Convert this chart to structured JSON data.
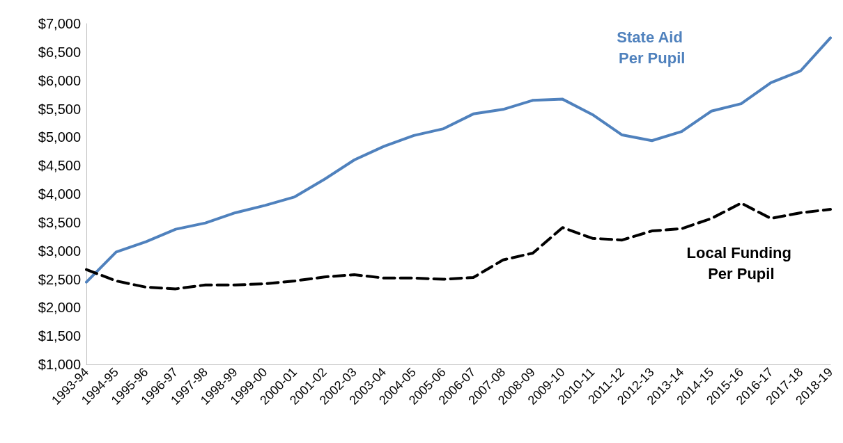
{
  "chart_data": {
    "type": "line",
    "categories": [
      "1993-94",
      "1994-95",
      "1995-96",
      "1996-97",
      "1997-98",
      "1998-99",
      "1999-00",
      "2000-01",
      "2001-02",
      "2002-03",
      "2003-04",
      "2004-05",
      "2005-06",
      "2006-07",
      "2007-08",
      "2008-09",
      "2009-10",
      "2010-11",
      "2011-12",
      "2012-13",
      "2013-14",
      "2014-15",
      "2015-16",
      "2016-17",
      "2017-18",
      "2018-19"
    ],
    "series": [
      {
        "name": "State Aid Per Pupil",
        "color": "#4f81bd",
        "line_style": "solid",
        "values": [
          2450,
          2980,
          3160,
          3380,
          3490,
          3670,
          3800,
          3950,
          4260,
          4600,
          4840,
          5030,
          5150,
          5410,
          5490,
          5650,
          5670,
          5400,
          5040,
          4940,
          5100,
          5460,
          5590,
          5960,
          6170,
          6750
        ]
      },
      {
        "name": "Local Funding Per Pupil",
        "color": "#000000",
        "line_style": "dashed",
        "values": [
          2670,
          2470,
          2360,
          2330,
          2400,
          2400,
          2420,
          2470,
          2540,
          2580,
          2520,
          2520,
          2500,
          2530,
          2840,
          2960,
          3410,
          3220,
          3190,
          3350,
          3390,
          3570,
          3840,
          3570,
          3670,
          3730
        ]
      }
    ],
    "ylim": [
      1000,
      7000
    ],
    "yticks": [
      {
        "value": 1000,
        "label": "$1,000"
      },
      {
        "value": 1500,
        "label": "$1,500"
      },
      {
        "value": 2000,
        "label": "$2,000"
      },
      {
        "value": 2500,
        "label": "$2,500"
      },
      {
        "value": 3000,
        "label": "$3,000"
      },
      {
        "value": 3500,
        "label": "$3,500"
      },
      {
        "value": 4000,
        "label": "$4,000"
      },
      {
        "value": 4500,
        "label": "$4,500"
      },
      {
        "value": 5000,
        "label": "$5,000"
      },
      {
        "value": 5500,
        "label": "$5,500"
      },
      {
        "value": 6000,
        "label": "$6,000"
      },
      {
        "value": 6500,
        "label": "$6,500"
      },
      {
        "value": 7000,
        "label": "$7,000"
      }
    ],
    "grid": false,
    "legend": false,
    "marker": "none"
  }
}
